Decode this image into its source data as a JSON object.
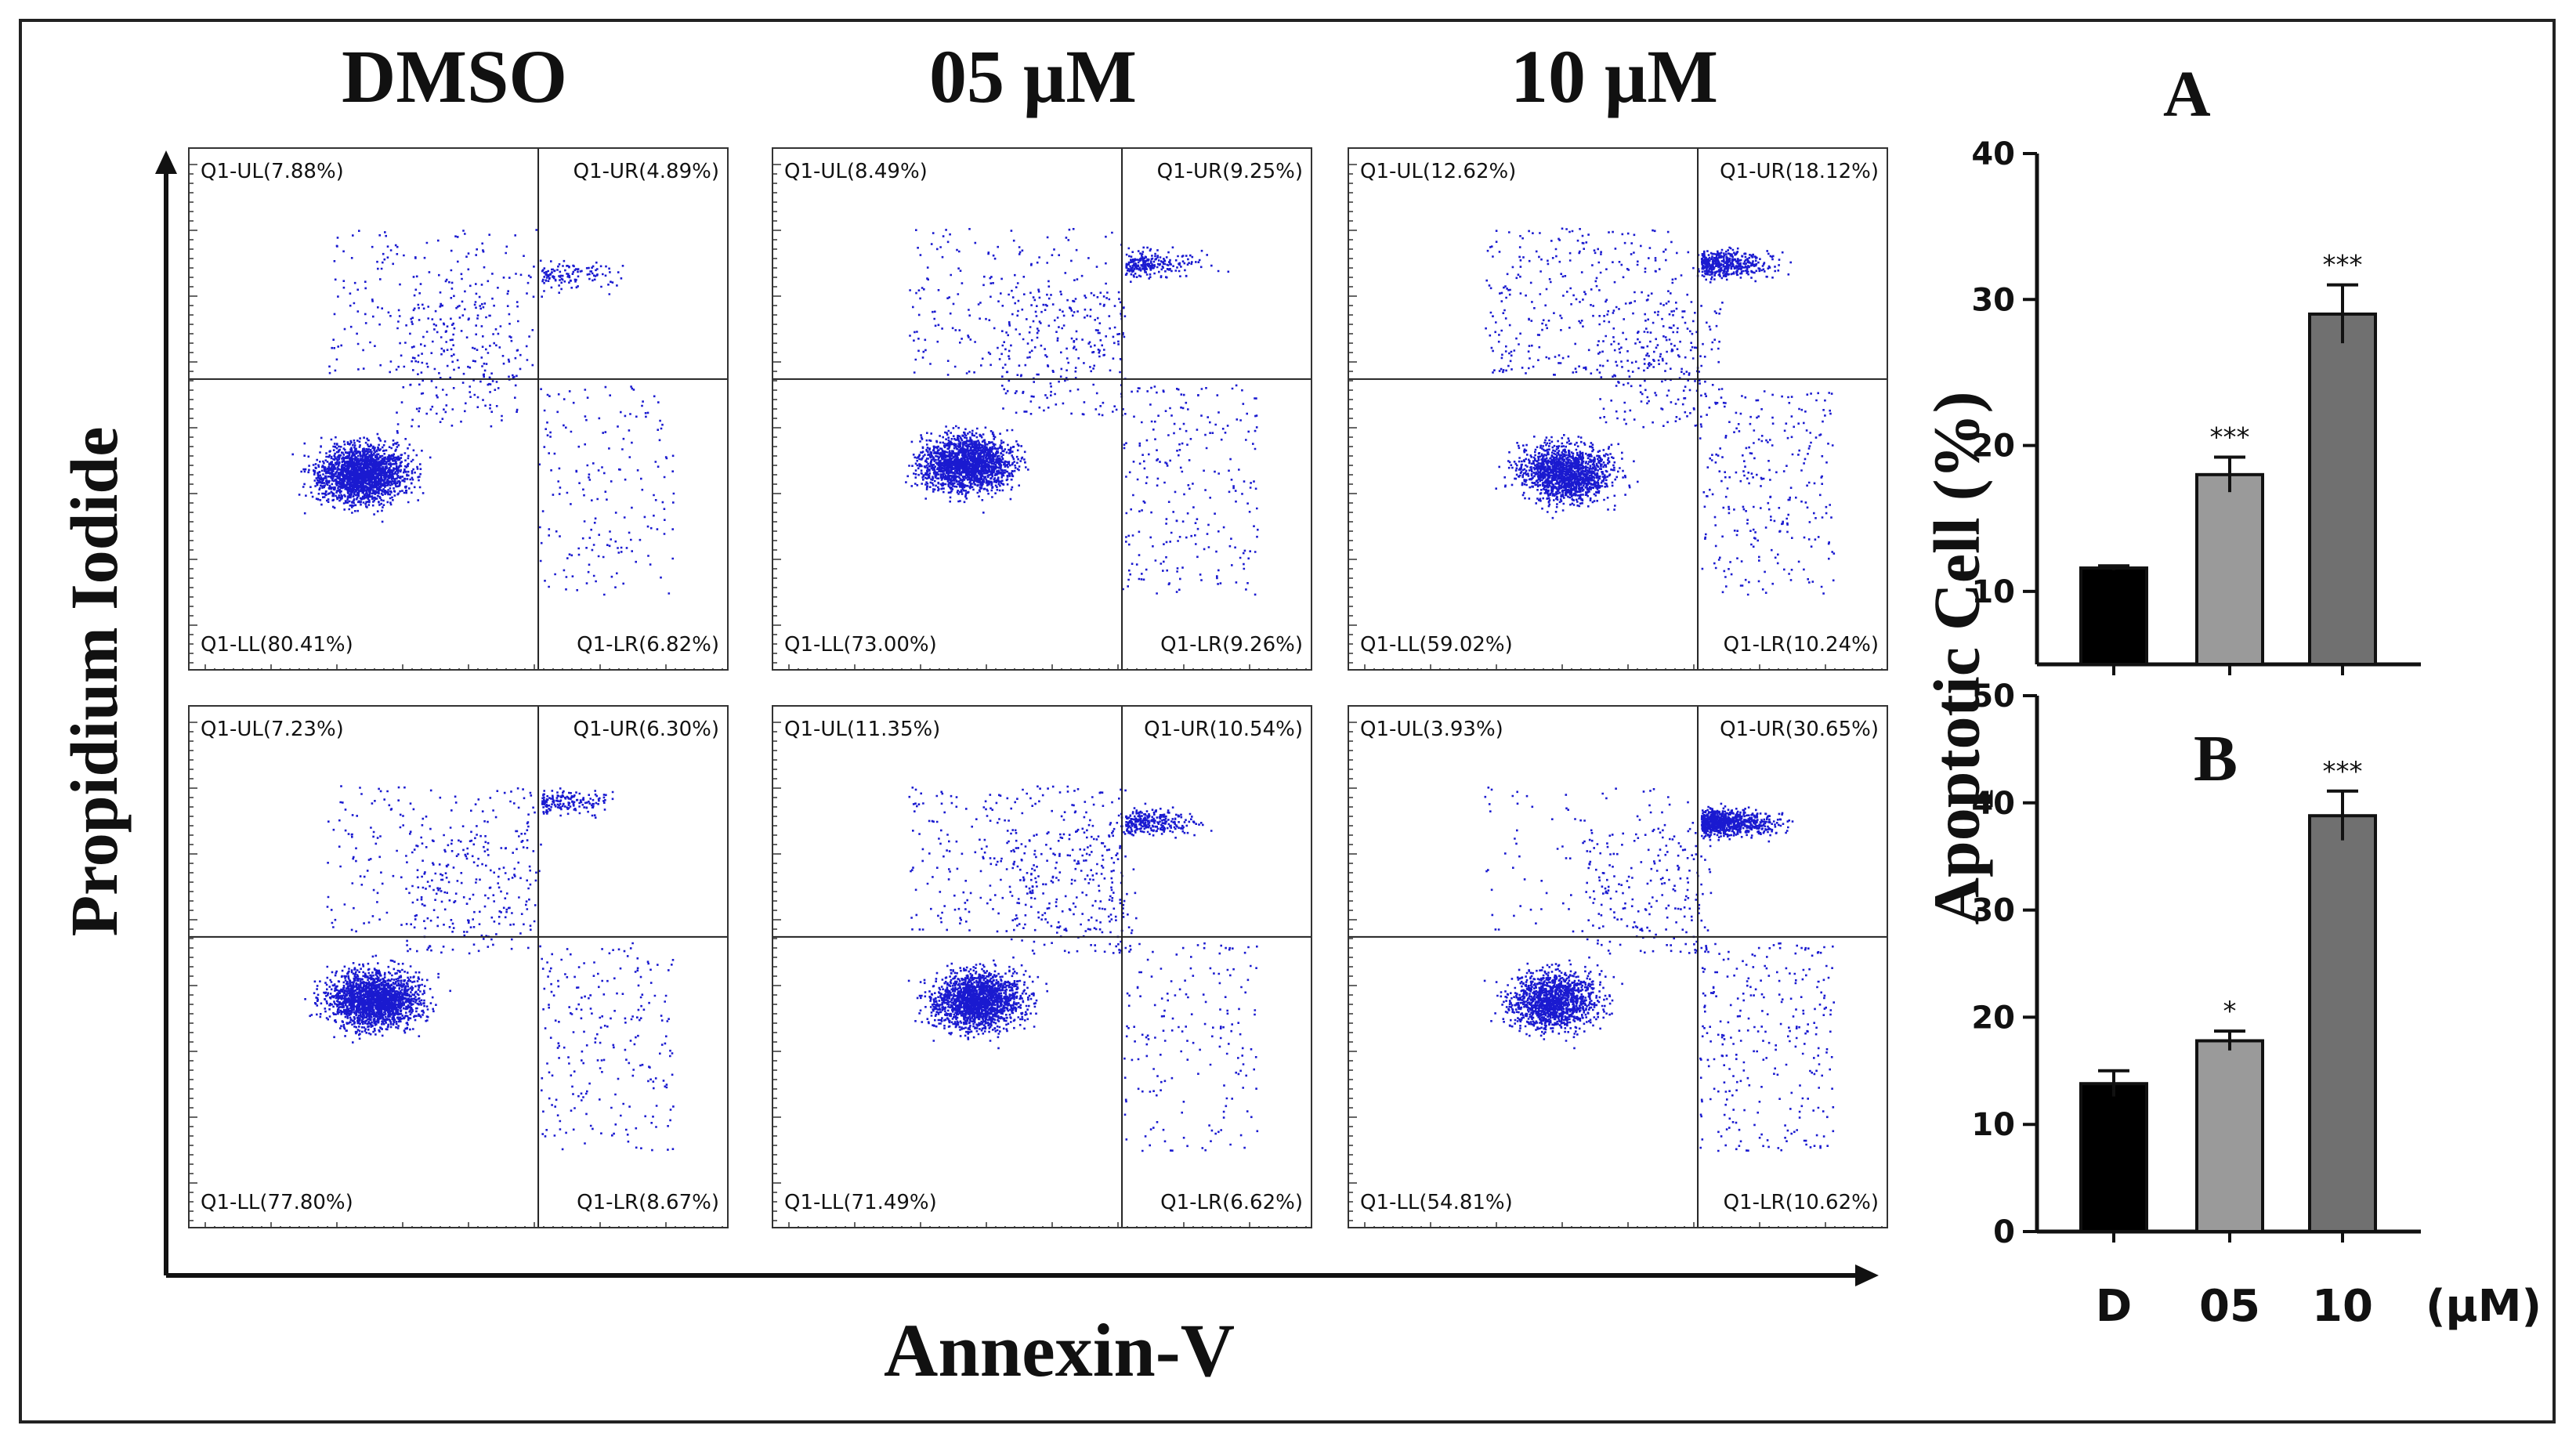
{
  "headers": {
    "col1": "DMSO",
    "col2": "05 μM",
    "col3": "10 μM",
    "ylabel": "Propidium Iodide",
    "xlabel": "Annexin-V"
  },
  "flow_panels": [
    {
      "ul": "Q1-UL(7.88%)",
      "ur": "Q1-UR(4.89%)",
      "ll": "Q1-LL(80.41%)",
      "lr": "Q1-LR(6.82%)"
    },
    {
      "ul": "Q1-UL(8.49%)",
      "ur": "Q1-UR(9.25%)",
      "ll": "Q1-LL(73.00%)",
      "lr": "Q1-LR(9.26%)"
    },
    {
      "ul": "Q1-UL(12.62%)",
      "ur": "Q1-UR(18.12%)",
      "ll": "Q1-LL(59.02%)",
      "lr": "Q1-LR(10.24%)"
    },
    {
      "ul": "Q1-UL(7.23%)",
      "ur": "Q1-UR(6.30%)",
      "ll": "Q1-LL(77.80%)",
      "lr": "Q1-LR(8.67%)"
    },
    {
      "ul": "Q1-UL(11.35%)",
      "ur": "Q1-UR(10.54%)",
      "ll": "Q1-LL(71.49%)",
      "lr": "Q1-LR(6.62%)"
    },
    {
      "ul": "Q1-UL(3.93%)",
      "ur": "Q1-UR(30.65%)",
      "ll": "Q1-LL(54.81%)",
      "lr": "Q1-LR(10.62%)"
    }
  ],
  "chart_data": [
    {
      "type": "scatter",
      "xlabel": "Annexin-V",
      "ylabel": "Propidium Iodide",
      "columns": [
        "DMSO",
        "05 μM",
        "10 μM"
      ],
      "quadrants": [
        {
          "UL": 7.88,
          "UR": 4.89,
          "LL": 80.41,
          "LR": 6.82
        },
        {
          "UL": 8.49,
          "UR": 9.25,
          "LL": 73.0,
          "LR": 9.26
        },
        {
          "UL": 12.62,
          "UR": 18.12,
          "LL": 59.02,
          "LR": 10.24
        },
        {
          "UL": 7.23,
          "UR": 6.3,
          "LL": 77.8,
          "LR": 8.67
        },
        {
          "UL": 11.35,
          "UR": 10.54,
          "LL": 71.49,
          "LR": 6.62
        },
        {
          "UL": 3.93,
          "UR": 30.65,
          "LL": 54.81,
          "LR": 10.62
        }
      ],
      "point_color": "#1a1ad0"
    },
    {
      "type": "bar",
      "panel_label": "A",
      "categories": [
        "D",
        "05",
        "10"
      ],
      "values": [
        11.6,
        18,
        29
      ],
      "errors": [
        0.15,
        1.2,
        2
      ],
      "significance": [
        "",
        "***",
        "***"
      ],
      "ylim": [
        5,
        40
      ],
      "yticks": [
        10,
        20,
        30,
        40
      ],
      "bar_colors": [
        "#000000",
        "#9a9a9a",
        "#707070"
      ]
    },
    {
      "type": "bar",
      "panel_label": "B",
      "categories": [
        "D",
        "05",
        "10"
      ],
      "values": [
        13.8,
        17.8,
        38.8
      ],
      "errors": [
        1.2,
        0.9,
        2.3
      ],
      "significance": [
        "",
        "*",
        "***"
      ],
      "ylim": [
        0,
        50
      ],
      "yticks": [
        0,
        10,
        20,
        30,
        40,
        50
      ],
      "bar_colors": [
        "#000000",
        "#9a9a9a",
        "#707070"
      ]
    }
  ],
  "bar_section": {
    "ylabel": "Apoptotic Cell (%)",
    "unit": "(μM)"
  }
}
